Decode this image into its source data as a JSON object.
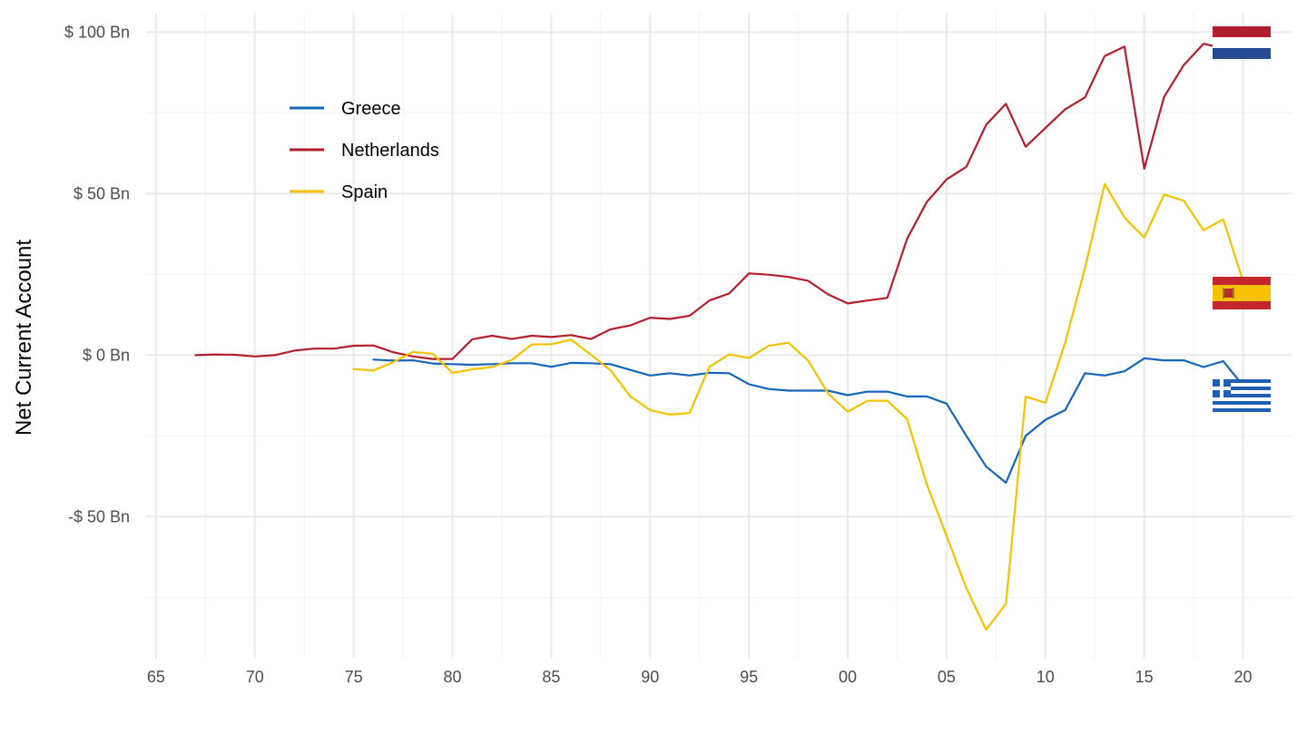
{
  "chart_data": {
    "type": "line",
    "title": "",
    "xlabel": "",
    "ylabel": "Net Current Account",
    "xlim": [
      1964.5,
      2022.5
    ],
    "ylim": [
      -94,
      106
    ],
    "x_ticks": [
      {
        "value": 1965,
        "label": "65"
      },
      {
        "value": 1970,
        "label": "70"
      },
      {
        "value": 1975,
        "label": "75"
      },
      {
        "value": 1980,
        "label": "80"
      },
      {
        "value": 1985,
        "label": "85"
      },
      {
        "value": 1990,
        "label": "90"
      },
      {
        "value": 1995,
        "label": "95"
      },
      {
        "value": 2000,
        "label": "00"
      },
      {
        "value": 2005,
        "label": "05"
      },
      {
        "value": 2010,
        "label": "10"
      },
      {
        "value": 2015,
        "label": "15"
      },
      {
        "value": 2020,
        "label": "20"
      }
    ],
    "y_ticks": [
      {
        "value": 100,
        "label": "$ 100 Bn"
      },
      {
        "value": 50,
        "label": "$ 50 Bn"
      },
      {
        "value": 0,
        "label": "$ 0 Bn"
      },
      {
        "value": -50,
        "label": "-$ 50 Bn"
      }
    ],
    "grid": true,
    "legend_position": "top-left",
    "series": [
      {
        "name": "Greece",
        "color": "#1565b8",
        "flag": "greece-flag",
        "x": [
          1976,
          1977,
          1978,
          1979,
          1980,
          1981,
          1982,
          1983,
          1984,
          1985,
          1986,
          1987,
          1988,
          1989,
          1990,
          1991,
          1992,
          1993,
          1994,
          1995,
          1996,
          1997,
          1998,
          1999,
          2000,
          2001,
          2002,
          2003,
          2004,
          2005,
          2006,
          2007,
          2008,
          2009,
          2010,
          2011,
          2012,
          2013,
          2014,
          2015,
          2016,
          2017,
          2018,
          2019,
          2020
        ],
        "y": [
          -1.4,
          -1.7,
          -1.6,
          -2.6,
          -2.8,
          -3.0,
          -2.8,
          -2.5,
          -2.5,
          -3.6,
          -2.4,
          -2.5,
          -2.8,
          -4.6,
          -6.3,
          -5.6,
          -6.3,
          -5.5,
          -5.6,
          -9.0,
          -10.5,
          -11.0,
          -11.0,
          -11.0,
          -12.4,
          -11.3,
          -11.3,
          -12.8,
          -12.8,
          -15.0,
          -25.0,
          -34.5,
          -39.5,
          -25.0,
          -20.0,
          -17.0,
          -5.6,
          -6.3,
          -5.0,
          -1.0,
          -1.6,
          -1.6,
          -3.7,
          -1.9,
          -9.5
        ]
      },
      {
        "name": "Netherlands",
        "color": "#b31e2e",
        "flag": "netherlands-flag",
        "x": [
          1967,
          1968,
          1969,
          1970,
          1971,
          1972,
          1973,
          1974,
          1975,
          1976,
          1977,
          1978,
          1979,
          1980,
          1981,
          1982,
          1983,
          1984,
          1985,
          1986,
          1987,
          1988,
          1989,
          1990,
          1991,
          1992,
          1993,
          1994,
          1995,
          1996,
          1997,
          1998,
          1999,
          2000,
          2001,
          2002,
          2003,
          2004,
          2005,
          2006,
          2007,
          2008,
          2009,
          2010,
          2011,
          2012,
          2013,
          2014,
          2015,
          2016,
          2017,
          2018,
          2019
        ],
        "y": [
          0.0,
          0.2,
          0.1,
          -0.4,
          0.0,
          1.4,
          2.0,
          2.0,
          2.9,
          3.0,
          0.9,
          -0.4,
          -1.2,
          -1.2,
          4.9,
          6.0,
          5.0,
          6.0,
          5.6,
          6.2,
          5.0,
          8.0,
          9.2,
          11.6,
          11.2,
          12.2,
          16.9,
          19.1,
          25.3,
          24.9,
          24.2,
          23.0,
          18.8,
          16.0,
          16.9,
          17.7,
          36.0,
          47.4,
          54.4,
          58.3,
          71.3,
          77.8,
          64.5,
          70.3,
          76.1,
          79.8,
          92.6,
          95.5,
          57.7,
          79.9,
          89.8,
          96.4,
          95.0
        ]
      },
      {
        "name": "Spain",
        "color": "#f6c200",
        "flag": "spain-flag",
        "x": [
          1975,
          1976,
          1977,
          1978,
          1979,
          1980,
          1981,
          1982,
          1983,
          1984,
          1985,
          1986,
          1987,
          1988,
          1989,
          1990,
          1991,
          1992,
          1993,
          1994,
          1995,
          1996,
          1997,
          1998,
          1999,
          2000,
          2001,
          2002,
          2003,
          2004,
          2005,
          2006,
          2007,
          2008,
          2009,
          2010,
          2011,
          2012,
          2013,
          2014,
          2015,
          2016,
          2017,
          2018,
          2019,
          2020
        ],
        "y": [
          -4.3,
          -4.8,
          -2.2,
          1.0,
          0.4,
          -5.5,
          -4.4,
          -3.7,
          -1.5,
          3.3,
          3.4,
          4.8,
          0.1,
          -4.7,
          -12.8,
          -17.0,
          -18.4,
          -17.9,
          -3.6,
          0.2,
          -0.9,
          2.9,
          3.8,
          -1.7,
          -11.9,
          -17.5,
          -14.1,
          -14.1,
          -19.8,
          -40.0,
          -56.0,
          -72.2,
          -85.0,
          -77.0,
          -12.8,
          -14.8,
          3.9,
          27.0,
          53.0,
          42.6,
          36.4,
          49.7,
          47.8,
          38.7,
          42.0,
          22.8
        ]
      }
    ]
  }
}
